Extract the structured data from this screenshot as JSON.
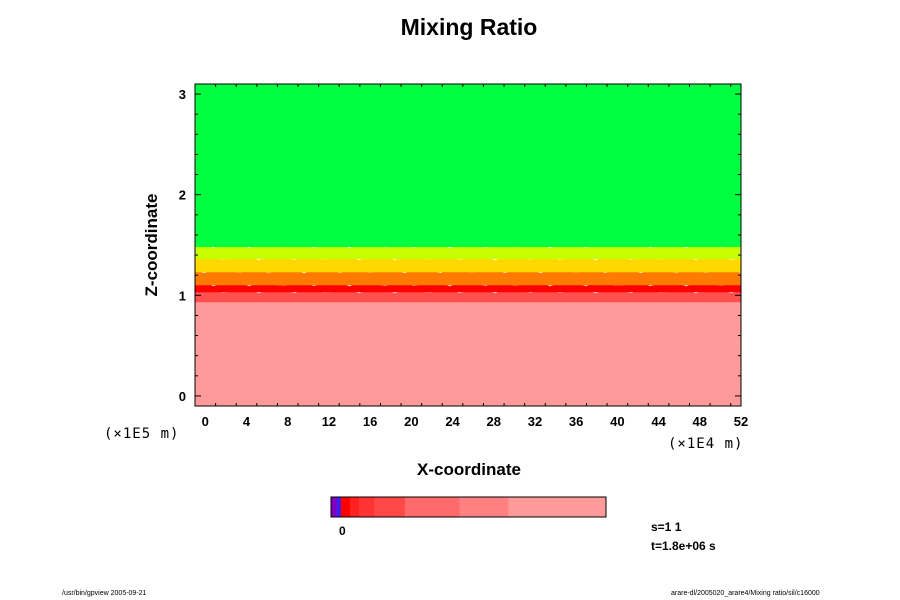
{
  "chart_data": {
    "type": "heatmap",
    "title": "Mixing Ratio",
    "xlabel": "X-coordinate",
    "ylabel": "Z-coordinate",
    "x_scale_note": "(×1E4 m)",
    "y_scale_note": "(×1E5 m)",
    "xlim": [
      -1,
      52
    ],
    "ylim": [
      -0.1,
      3.1
    ],
    "x_ticks": [
      0,
      4,
      8,
      12,
      16,
      20,
      24,
      28,
      32,
      36,
      40,
      44,
      48,
      52
    ],
    "y_ticks": [
      0,
      1,
      2,
      3
    ],
    "regions": [
      {
        "z_from": -0.1,
        "z_to": 0.95,
        "color": "#ff9a9a"
      },
      {
        "z_from": 0.95,
        "z_to": 1.05,
        "color": "#ff5050"
      },
      {
        "z_from": 1.05,
        "z_to": 1.12,
        "color": "#ff0000"
      },
      {
        "z_from": 1.12,
        "z_to": 1.25,
        "color": "#ff7a00"
      },
      {
        "z_from": 1.25,
        "z_to": 1.38,
        "color": "#ffd800"
      },
      {
        "z_from": 1.38,
        "z_to": 1.5,
        "color": "#c8ff00"
      },
      {
        "z_from": 1.5,
        "z_to": 3.1,
        "color": "#00ff40"
      }
    ],
    "colorbar": {
      "zero_label": "0",
      "segments": [
        {
          "color": "#8000c0",
          "weight": 1
        },
        {
          "color": "#3020ff",
          "weight": 0.6
        },
        {
          "color": "#ff0000",
          "weight": 1.5
        },
        {
          "color": "#ff2020",
          "weight": 1.5
        },
        {
          "color": "#ff3333",
          "weight": 2.5
        },
        {
          "color": "#ff4848",
          "weight": 5
        },
        {
          "color": "#ff6a6a",
          "weight": 9
        },
        {
          "color": "#ff8080",
          "weight": 8
        },
        {
          "color": "#ff9a9a",
          "weight": 16
        }
      ]
    }
  },
  "annotations": {
    "step": "s=1 1",
    "time": "t=1.8e+06 s"
  },
  "footer": {
    "left": "/usr/bin/gpview 2005-09-21",
    "right": "arare-dl/2005020_arare4/Mixing ratio/sil/c16000"
  },
  "colors": {
    "background": "#ffffff",
    "frame": "#000000"
  }
}
